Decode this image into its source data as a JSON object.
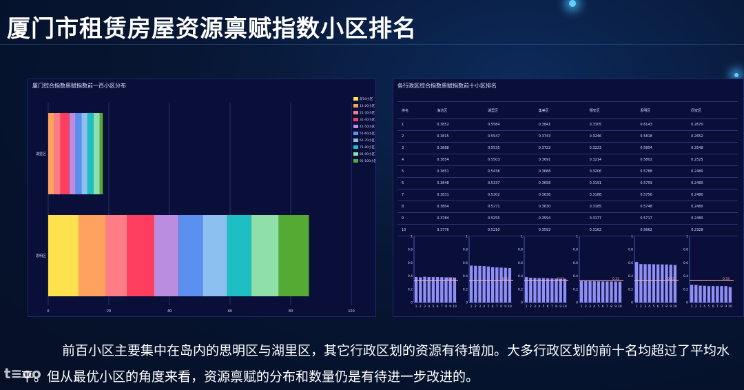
{
  "slide_title": "厦门市租赁房屋资源禀赋指数小区排名",
  "caption": "前百小区主要集中在岛内的思明区与湖里区，其它行政区划的资源有待增加。大多行政区划的前十名均超过了平均水平。但从最优小区的角度来看，资源禀赋的分布和数量仍是有待进一步改进的。",
  "watermark": "t≡oo",
  "colors": {
    "background": "#071633",
    "panel": "#0a0f3a",
    "mini_bar": "#8f8ff5",
    "avg_line": "#ffb4b4"
  },
  "chart_data": [
    {
      "type": "bar",
      "orientation": "horizontal",
      "stacked": true,
      "title": "厦门综合指数禀赋指数前一百小区分布",
      "categories": [
        "湖里区",
        "思明区"
      ],
      "xlim": [
        0,
        100
      ],
      "xticks": [
        0,
        20,
        40,
        60,
        80,
        100
      ],
      "legend_position": "right",
      "series": [
        {
          "name": "前10小区",
          "color": "#ffe14d",
          "values": [
            0,
            10
          ]
        },
        {
          "name": "11-20小区",
          "color": "#ffa25f",
          "values": [
            2,
            9
          ]
        },
        {
          "name": "21-30小区",
          "color": "#ff7b86",
          "values": [
            2,
            7
          ]
        },
        {
          "name": "31-40小区",
          "color": "#ff3d5e",
          "values": [
            3,
            9
          ]
        },
        {
          "name": "41-50小区",
          "color": "#bb8de0",
          "values": [
            2,
            8
          ]
        },
        {
          "name": "51-60小区",
          "color": "#5b8ff0",
          "values": [
            2,
            8
          ]
        },
        {
          "name": "61-70小区",
          "color": "#8cc0f0",
          "values": [
            2,
            8
          ]
        },
        {
          "name": "71-80小区",
          "color": "#1ebfc4",
          "values": [
            2,
            8
          ]
        },
        {
          "name": "81-90小区",
          "color": "#8ee0a8",
          "values": [
            2,
            9
          ]
        },
        {
          "name": "91-100小区",
          "color": "#55aa33",
          "values": [
            1,
            10
          ]
        }
      ]
    },
    {
      "type": "table",
      "title": "各行政区综合指数禀赋指数前十小区排名",
      "columns": [
        "排名",
        "海沧区",
        "湖里区",
        "集美区",
        "翔安区",
        "思明区",
        "同安区"
      ],
      "rows": [
        [
          "1",
          "0.3852",
          "0.5584",
          "0.3841",
          "0.3305",
          "0.6143",
          "0.2670"
        ],
        [
          "2",
          "0.3815",
          "0.5547",
          "0.3743",
          "0.3246",
          "0.5818",
          "0.2652"
        ],
        [
          "3",
          "0.3888",
          "0.5535",
          "0.3722",
          "0.3223",
          "0.5804",
          "0.2548"
        ],
        [
          "4",
          "0.3854",
          "0.5503",
          "0.3691",
          "0.3214",
          "0.5802",
          "0.2525"
        ],
        [
          "5",
          "0.3851",
          "0.5438",
          "0.3688",
          "0.3206",
          "0.5788",
          "0.2480"
        ],
        [
          "6",
          "0.3848",
          "0.5337",
          "0.3658",
          "0.3191",
          "0.5759",
          "0.2480"
        ],
        [
          "7",
          "0.3831",
          "0.5302",
          "0.3636",
          "0.3188",
          "0.5756",
          "0.2480"
        ],
        [
          "8",
          "0.3804",
          "0.5271",
          "0.3630",
          "0.3185",
          "0.5748",
          "0.2480"
        ],
        [
          "9",
          "0.3784",
          "0.5255",
          "0.3594",
          "0.3177",
          "0.5717",
          "0.2480"
        ],
        [
          "10",
          "0.3776",
          "0.5210",
          "0.3592",
          "0.3162",
          "0.5662",
          "0.2328"
        ]
      ]
    },
    {
      "type": "bar",
      "small_multiples": true,
      "ylim": [
        0,
        1
      ],
      "yticks": [
        0,
        0.2,
        0.4,
        0.6,
        0.8,
        1
      ],
      "categories": [
        "1",
        "2",
        "3",
        "4",
        "5",
        "6",
        "7",
        "8",
        "9",
        "10"
      ],
      "average": 0.33,
      "average_label": "0.33",
      "series": [
        {
          "values": [
            0.3852,
            0.3815,
            0.3888,
            0.3854,
            0.3851,
            0.3848,
            0.3831,
            0.3804,
            0.3784,
            0.3776
          ]
        },
        {
          "values": [
            0.5584,
            0.5547,
            0.5535,
            0.5503,
            0.5438,
            0.5337,
            0.5302,
            0.5271,
            0.5255,
            0.521
          ]
        },
        {
          "values": [
            0.3841,
            0.3743,
            0.3722,
            0.3691,
            0.3688,
            0.3658,
            0.3636,
            0.363,
            0.3594,
            0.3592
          ]
        },
        {
          "values": [
            0.3305,
            0.3246,
            0.3223,
            0.3214,
            0.3206,
            0.3191,
            0.3188,
            0.3185,
            0.3177,
            0.3162
          ]
        },
        {
          "values": [
            0.6143,
            0.5818,
            0.5804,
            0.5802,
            0.5788,
            0.5759,
            0.5756,
            0.5748,
            0.5717,
            0.5662
          ]
        },
        {
          "values": [
            0.267,
            0.2652,
            0.2548,
            0.2525,
            0.248,
            0.248,
            0.248,
            0.248,
            0.248,
            0.2328
          ]
        }
      ]
    }
  ]
}
